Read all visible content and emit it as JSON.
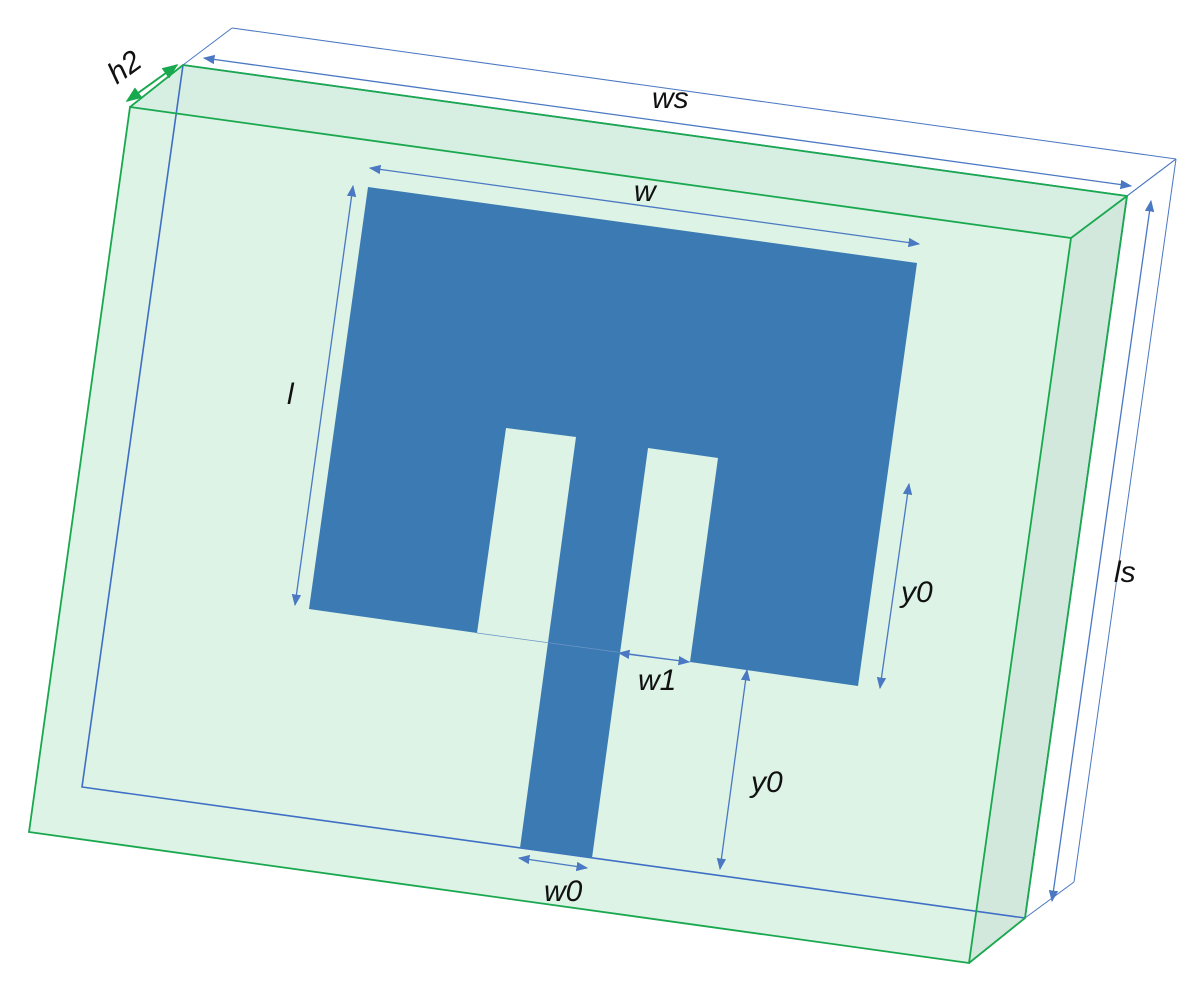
{
  "labels": {
    "ws": "ws",
    "ls": "ls",
    "h2": "h2",
    "w": "w",
    "l": "l",
    "w1": "w1",
    "w0": "w0",
    "y0_patch": "y0",
    "y0_feed": "y0"
  },
  "colors": {
    "substrate_fill": "#dcf3e6",
    "substrate_side_fill": "#d3e8dd",
    "substrate_edge": "#1aa84f",
    "ground_edge": "#3f6fc4",
    "patch_fill": "#3b7ab3",
    "dimension_line": "#4a78c2",
    "h2_arrow": "#18a84d"
  }
}
